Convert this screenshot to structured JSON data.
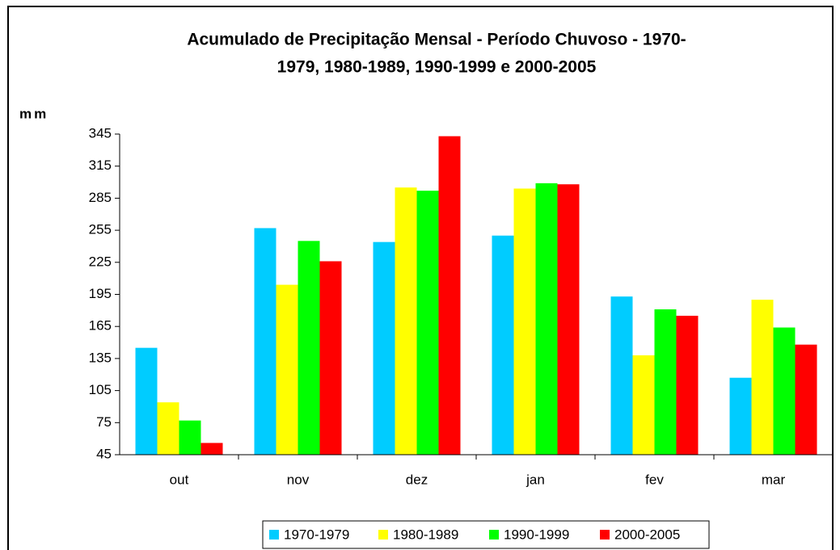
{
  "chart_data": {
    "type": "bar",
    "title": [
      "Acumulado de Precipitação Mensal - Período Chuvoso - 1970-",
      "1979, 1980-1989, 1990-1999 e 2000-2005"
    ],
    "y_label": "mm",
    "categories": [
      "out",
      "nov",
      "dez",
      "jan",
      "fev",
      "mar"
    ],
    "series": [
      {
        "name": "1970-1979",
        "color": "#00ccff",
        "values": [
          145,
          257,
          244,
          250,
          193,
          117
        ]
      },
      {
        "name": "1980-1989",
        "color": "#ffff00",
        "values": [
          94,
          204,
          295,
          294,
          138,
          190
        ]
      },
      {
        "name": "1990-1999",
        "color": "#00ff00",
        "values": [
          77,
          245,
          292,
          299,
          181,
          164
        ]
      },
      {
        "name": "2000-2005",
        "color": "#ff0000",
        "values": [
          56,
          226,
          343,
          298,
          175,
          148
        ]
      }
    ],
    "ylim": [
      45,
      345
    ],
    "yticks": [
      45,
      75,
      105,
      135,
      165,
      195,
      225,
      255,
      285,
      315,
      345
    ],
    "grid": false
  }
}
